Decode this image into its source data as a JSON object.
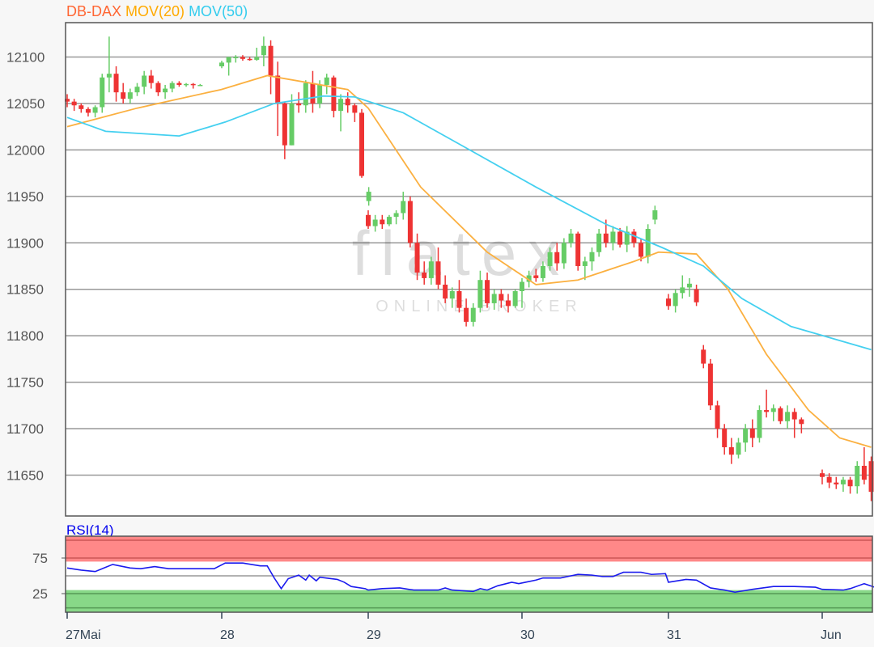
{
  "chart_data": [
    {
      "type": "candlestick",
      "title_parts": [
        {
          "text": "DB-DAX",
          "color": "#ff6633"
        },
        {
          "text": "MOV(20)",
          "color": "#ffaa00"
        },
        {
          "text": "MOV(50)",
          "color": "#33ccee"
        }
      ],
      "watermark": {
        "logo": "flatex",
        "tagline": "ONLINE BROKER"
      },
      "ylim": [
        11606,
        12137
      ],
      "y_ticks": [
        11650,
        11700,
        11750,
        11800,
        11850,
        11900,
        11950,
        12000,
        12050,
        12100
      ],
      "grid": true,
      "colors": {
        "up": "#66cc66",
        "down": "#ee3333",
        "mov20": "#fbb040",
        "mov50": "#44d0f0"
      },
      "candles": [
        [
          "27 08:00",
          12055,
          12060,
          12046,
          12052
        ],
        [
          "27 08:30",
          12052,
          12055,
          12042,
          12048
        ],
        [
          "27 09:00",
          12048,
          12050,
          12040,
          12044
        ],
        [
          "27 09:30",
          12044,
          12046,
          12036,
          12040
        ],
        [
          "27 10:00",
          12040,
          12048,
          12035,
          12046
        ],
        [
          "27 10:30",
          12046,
          12082,
          12040,
          12078
        ],
        [
          "27 11:00",
          12078,
          12122,
          12062,
          12082
        ],
        [
          "27 11:30",
          12082,
          12090,
          12052,
          12062
        ],
        [
          "27 12:00",
          12062,
          12072,
          12050,
          12055
        ],
        [
          "27 12:30",
          12055,
          12066,
          12050,
          12062
        ],
        [
          "27 13:00",
          12062,
          12072,
          12058,
          12068
        ],
        [
          "27 13:30",
          12068,
          12085,
          12060,
          12080
        ],
        [
          "27 14:00",
          12080,
          12086,
          12066,
          12072
        ],
        [
          "27 14:30",
          12072,
          12074,
          12058,
          12062
        ],
        [
          "27 15:00",
          12062,
          12070,
          12055,
          12066
        ],
        [
          "27 15:30",
          12066,
          12074,
          12062,
          12072
        ],
        [
          "27 16:00",
          12072,
          12074,
          12068,
          12070
        ],
        [
          "27 16:30",
          12070,
          12072,
          12068,
          12071
        ],
        [
          "27 17:00",
          12071,
          12072,
          12066,
          12070
        ],
        [
          "27 17:30",
          12070,
          12071,
          12069,
          12070
        ],
        [
          "28 08:00",
          12090,
          12096,
          12088,
          12094
        ],
        [
          "28 08:30",
          12094,
          12100,
          12080,
          12100
        ],
        [
          "28 09:00",
          12100,
          12102,
          12094,
          12100
        ],
        [
          "28 09:30",
          12100,
          12102,
          12096,
          12098
        ],
        [
          "28 10:00",
          12098,
          12100,
          12096,
          12097
        ],
        [
          "28 10:30",
          12097,
          12110,
          12096,
          12100
        ],
        [
          "28 11:00",
          12102,
          12122,
          12090,
          12112
        ],
        [
          "28 11:30",
          12112,
          12118,
          12060,
          12080
        ],
        [
          "28 12:00",
          12080,
          12095,
          12015,
          12050
        ],
        [
          "28 12:30",
          12050,
          12052,
          11990,
          12005
        ],
        [
          "28 13:00",
          12005,
          12060,
          12005,
          12050
        ],
        [
          "28 13:30",
          12050,
          12062,
          12040,
          12048
        ],
        [
          "28 14:00",
          12048,
          12075,
          12040,
          12072
        ],
        [
          "28 14:30",
          12072,
          12085,
          12040,
          12050
        ],
        [
          "28 15:00",
          12050,
          12075,
          12045,
          12070
        ],
        [
          "28 15:30",
          12070,
          12082,
          12060,
          12078
        ],
        [
          "28 16:00",
          12078,
          12080,
          12035,
          12042
        ],
        [
          "28 16:30",
          12042,
          12060,
          12020,
          12055
        ],
        [
          "28 17:00",
          12055,
          12062,
          12040,
          12048
        ],
        [
          "28 17:30",
          12048,
          12050,
          12030,
          12040
        ],
        [
          "28 18:00",
          12040,
          12044,
          11970,
          11972
        ],
        [
          "28 18:30",
          11945,
          11960,
          11940,
          11955
        ],
        [
          "29 08:00",
          11930,
          11935,
          11915,
          11918
        ],
        [
          "29 08:30",
          11918,
          11930,
          11912,
          11925
        ],
        [
          "29 09:00",
          11925,
          11930,
          11915,
          11920
        ],
        [
          "29 09:30",
          11920,
          11930,
          11918,
          11928
        ],
        [
          "29 10:00",
          11928,
          11935,
          11920,
          11932
        ],
        [
          "29 10:30",
          11932,
          11955,
          11925,
          11945
        ],
        [
          "29 11:00",
          11945,
          11950,
          11895,
          11900
        ],
        [
          "29 11:30",
          11900,
          11910,
          11860,
          11868
        ],
        [
          "29 12:00",
          11868,
          11880,
          11855,
          11862
        ],
        [
          "29 12:30",
          11862,
          11885,
          11855,
          11880
        ],
        [
          "29 13:00",
          11880,
          11895,
          11850,
          11855
        ],
        [
          "29 13:30",
          11855,
          11865,
          11835,
          11840
        ],
        [
          "29 14:00",
          11840,
          11852,
          11830,
          11848
        ],
        [
          "29 14:30",
          11848,
          11860,
          11825,
          11830
        ],
        [
          "29 15:00",
          11830,
          11840,
          11810,
          11815
        ],
        [
          "29 15:30",
          11815,
          11835,
          11810,
          11830
        ],
        [
          "29 16:00",
          11830,
          11870,
          11825,
          11860
        ],
        [
          "29 16:30",
          11860,
          11868,
          11830,
          11835
        ],
        [
          "29 17:00",
          11835,
          11850,
          11828,
          11845
        ],
        [
          "29 17:30",
          11845,
          11850,
          11830,
          11838
        ],
        [
          "29 18:00",
          11838,
          11845,
          11825,
          11832
        ],
        [
          "29 18:30",
          11832,
          11850,
          11830,
          11848
        ],
        [
          "30 08:00",
          11848,
          11862,
          11830,
          11858
        ],
        [
          "30 08:30",
          11858,
          11870,
          11852,
          11865
        ],
        [
          "30 09:00",
          11865,
          11872,
          11858,
          11862
        ],
        [
          "30 09:30",
          11862,
          11880,
          11858,
          11875
        ],
        [
          "30 10:00",
          11875,
          11895,
          11870,
          11890
        ],
        [
          "30 10:30",
          11890,
          11900,
          11870,
          11878
        ],
        [
          "30 11:00",
          11878,
          11905,
          11872,
          11900
        ],
        [
          "30 11:30",
          11900,
          11915,
          11895,
          11910
        ],
        [
          "30 12:00",
          11910,
          11912,
          11870,
          11875
        ],
        [
          "30 12:30",
          11875,
          11885,
          11860,
          11880
        ],
        [
          "30 13:00",
          11880,
          11895,
          11870,
          11890
        ],
        [
          "30 13:30",
          11890,
          11915,
          11885,
          11910
        ],
        [
          "30 14:00",
          11910,
          11925,
          11895,
          11900
        ],
        [
          "30 14:30",
          11900,
          11918,
          11892,
          11912
        ],
        [
          "30 15:00",
          11912,
          11916,
          11895,
          11898
        ],
        [
          "30 15:30",
          11898,
          11918,
          11890,
          11912
        ],
        [
          "30 16:00",
          11912,
          11915,
          11895,
          11900
        ],
        [
          "30 16:30",
          11900,
          11905,
          11880,
          11885
        ],
        [
          "30 17:00",
          11885,
          11920,
          11878,
          11915
        ],
        [
          "30 17:30",
          11925,
          11940,
          11920,
          11935
        ],
        [
          "31 08:00",
          11840,
          11845,
          11828,
          11832
        ],
        [
          "31 08:30",
          11832,
          11850,
          11825,
          11846
        ],
        [
          "31 09:00",
          11846,
          11865,
          11840,
          11852
        ],
        [
          "31 09:30",
          11852,
          11862,
          11842,
          11856
        ],
        [
          "31 10:00",
          11850,
          11855,
          11832,
          11836
        ],
        [
          "31 10:30",
          11785,
          11790,
          11765,
          11770
        ],
        [
          "31 11:00",
          11770,
          11775,
          11720,
          11725
        ],
        [
          "31 11:30",
          11725,
          11730,
          11690,
          11700
        ],
        [
          "31 12:00",
          11700,
          11705,
          11672,
          11680
        ],
        [
          "31 12:30",
          11680,
          11690,
          11662,
          11672
        ],
        [
          "31 13:00",
          11672,
          11690,
          11668,
          11685
        ],
        [
          "31 13:30",
          11685,
          11705,
          11675,
          11700
        ],
        [
          "31 14:00",
          11700,
          11710,
          11680,
          11690
        ],
        [
          "31 14:30",
          11690,
          11725,
          11685,
          11720
        ],
        [
          "31 15:00",
          11720,
          11742,
          11712,
          11718
        ],
        [
          "31 15:30",
          11718,
          11726,
          11708,
          11722
        ],
        [
          "31 16:00",
          11722,
          11724,
          11705,
          11708
        ],
        [
          "31 16:30",
          11708,
          11725,
          11700,
          11718
        ],
        [
          "31 17:00",
          11718,
          11722,
          11690,
          11710
        ],
        [
          "31 17:30",
          11710,
          11712,
          11695,
          11705
        ],
        [
          "Jun 08:00",
          11652,
          11656,
          11640,
          11648
        ],
        [
          "Jun 08:30",
          11648,
          11652,
          11636,
          11642
        ],
        [
          "Jun 09:00",
          11642,
          11648,
          11635,
          11640
        ],
        [
          "Jun 09:30",
          11640,
          11648,
          11632,
          11645
        ],
        [
          "Jun 10:00",
          11645,
          11648,
          11630,
          11638
        ],
        [
          "Jun 10:30",
          11638,
          11665,
          11630,
          11660
        ],
        [
          "Jun 11:00",
          11660,
          11680,
          11640,
          11645
        ],
        [
          "Jun 11:30",
          11665,
          11670,
          11622,
          11632
        ]
      ],
      "mov20": [
        [
          "27 08:00",
          12025
        ],
        [
          "27 13:00",
          12045
        ],
        [
          "27 19:00",
          12065
        ],
        [
          "28 11:15",
          12080
        ],
        [
          "28 17:00",
          12065
        ],
        [
          "29 08:00",
          12045
        ],
        [
          "29 11:45",
          11960
        ],
        [
          "29 16:30",
          11890
        ],
        [
          "30 09:00",
          11855
        ],
        [
          "30 12:00",
          11860
        ],
        [
          "30 16:00",
          11880
        ],
        [
          "30 17:45",
          11890
        ],
        [
          "31 10:00",
          11888
        ],
        [
          "31 12:15",
          11850
        ],
        [
          "31 15:00",
          11780
        ],
        [
          "31 18:00",
          11720
        ],
        [
          "Jun 09:15",
          11690
        ],
        [
          "Jun 11:30",
          11680
        ]
      ],
      "mov50": [
        [
          "27 08:00",
          12035
        ],
        [
          "27 10:45",
          12020
        ],
        [
          "27 16:00",
          12015
        ],
        [
          "28 08:15",
          12030
        ],
        [
          "28 11:45",
          12050
        ],
        [
          "28 15:15",
          12058
        ],
        [
          "28 17:30",
          12057
        ],
        [
          "29 10:30",
          12040
        ],
        [
          "29 15:15",
          12000
        ],
        [
          "30 09:00",
          11960
        ],
        [
          "30 14:00",
          11920
        ],
        [
          "30 18:00",
          11895
        ],
        [
          "31 10:30",
          11875
        ],
        [
          "31 13:15",
          11840
        ],
        [
          "31 16:45",
          11810
        ],
        [
          "Jun 11:30",
          11785
        ]
      ]
    },
    {
      "type": "line",
      "title": "RSI(14)",
      "title_color": "#0000ee",
      "ylim": [
        0,
        100
      ],
      "y_ticks": [
        25,
        75
      ],
      "bands": {
        "overbought": [
          70,
          100
        ],
        "oversold": [
          0,
          30
        ],
        "overbought_color": "#ff8888",
        "oversold_color": "#88d888",
        "midline": 50
      },
      "line_color": "#1a1aee",
      "values": [
        [
          "27 08:00",
          61
        ],
        [
          "27 09:00",
          58
        ],
        [
          "27 10:00",
          56
        ],
        [
          "27 11:15",
          66
        ],
        [
          "27 12:30",
          61
        ],
        [
          "27 13:15",
          60
        ],
        [
          "27 14:15",
          63
        ],
        [
          "27 15:15",
          60
        ],
        [
          "27 18:30",
          60
        ],
        [
          "28 08:15",
          68
        ],
        [
          "28 09:30",
          68
        ],
        [
          "28 10:45",
          64
        ],
        [
          "28 11:15",
          64
        ],
        [
          "28 11:45",
          47
        ],
        [
          "28 12:15",
          32
        ],
        [
          "28 12:45",
          46
        ],
        [
          "28 13:30",
          51
        ],
        [
          "28 14:00",
          44
        ],
        [
          "28 14:15",
          51
        ],
        [
          "28 14:45",
          43
        ],
        [
          "28 15:00",
          48
        ],
        [
          "28 16:15",
          45
        ],
        [
          "28 16:45",
          41
        ],
        [
          "28 17:15",
          35
        ],
        [
          "28 18:15",
          32
        ],
        [
          "29 08:00",
          30
        ],
        [
          "29 09:00",
          32
        ],
        [
          "29 10:15",
          33
        ],
        [
          "29 11:15",
          30
        ],
        [
          "29 13:00",
          30
        ],
        [
          "29 13:30",
          33
        ],
        [
          "29 14:00",
          30
        ],
        [
          "29 15:30",
          28
        ],
        [
          "29 16:00",
          32
        ],
        [
          "29 16:30",
          30
        ],
        [
          "29 17:15",
          36
        ],
        [
          "29 18:15",
          41
        ],
        [
          "29 18:45",
          39
        ],
        [
          "30 08:15",
          41
        ],
        [
          "30 09:00",
          44
        ],
        [
          "30 09:30",
          47
        ],
        [
          "30 10:45",
          47
        ],
        [
          "30 11:30",
          50
        ],
        [
          "30 12:00",
          52
        ],
        [
          "30 13:00",
          51
        ],
        [
          "30 13:45",
          49
        ],
        [
          "30 14:30",
          49
        ],
        [
          "30 15:15",
          55
        ],
        [
          "30 16:30",
          55
        ],
        [
          "30 17:15",
          52
        ],
        [
          "30 18:15",
          53
        ],
        [
          "31 08:00",
          41
        ],
        [
          "31 09:15",
          45
        ],
        [
          "31 10:00",
          44
        ],
        [
          "31 11:00",
          33
        ],
        [
          "31 12:00",
          30
        ],
        [
          "31 12:45",
          27
        ],
        [
          "31 14:00",
          31
        ],
        [
          "31 15:30",
          35
        ],
        [
          "31 17:00",
          35
        ],
        [
          "31 18:30",
          34
        ],
        [
          "Jun 08:00",
          31
        ],
        [
          "Jun 09:30",
          30
        ],
        [
          "Jun 10:00",
          32
        ],
        [
          "Jun 11:00",
          39
        ],
        [
          "Jun 11:45",
          34
        ]
      ]
    }
  ],
  "x_ticks": [
    {
      "day": "27",
      "label": "27Mai"
    },
    {
      "day": "28",
      "label": "28"
    },
    {
      "day": "29",
      "label": "29"
    },
    {
      "day": "30",
      "label": "30"
    },
    {
      "day": "31",
      "label": "31"
    },
    {
      "day": "Jun",
      "label": "Jun"
    }
  ]
}
